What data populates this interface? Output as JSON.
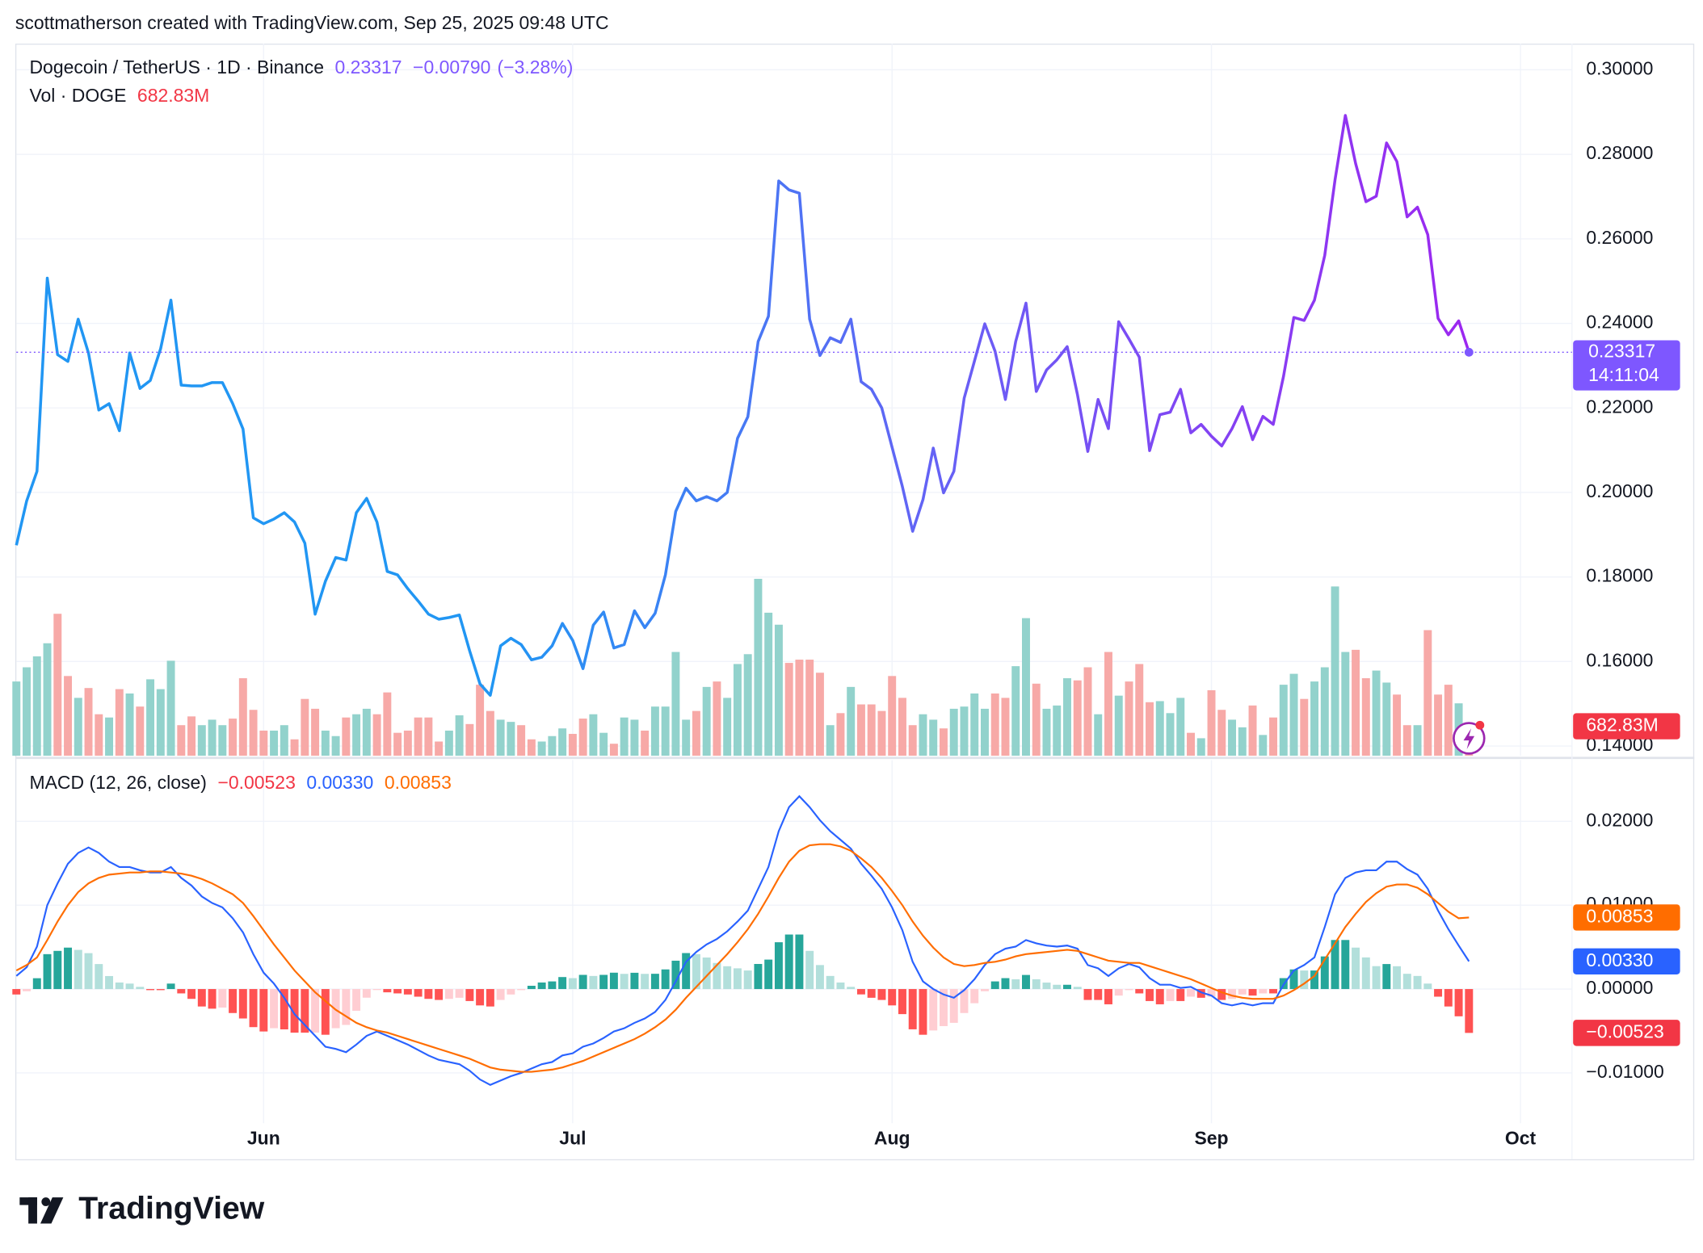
{
  "header": "scottmatherson created with TradingView.com, Sep 25, 2025 09:48 UTC",
  "brand": "TradingView",
  "chart_data": [
    {
      "type": "line",
      "title": "Dogecoin / TetherUS · 1D · Binance",
      "change": "−0.00790",
      "change_percent": "(−3.28%)",
      "countdown": "14:11:04",
      "color": "#7e57ff",
      "color_stops": [
        "#2196f3",
        "#2196f3",
        "#6c5cf5",
        "#9c27f0"
      ],
      "ylim": [
        0.1377,
        0.3062
      ],
      "yticks": [
        {
          "value": 0.14,
          "label": "0.14000"
        },
        {
          "value": 0.16,
          "label": "0.16000"
        },
        {
          "value": 0.18,
          "label": "0.18000"
        },
        {
          "value": 0.2,
          "label": "0.20000"
        },
        {
          "value": 0.22,
          "label": "0.22000"
        },
        {
          "value": 0.24,
          "label": "0.24000"
        },
        {
          "value": 0.26,
          "label": "0.26000"
        },
        {
          "value": 0.28,
          "label": "0.28000"
        },
        {
          "value": 0.3,
          "label": "0.30000"
        }
      ],
      "grid": true,
      "values": [
        0.1875,
        0.198,
        0.205,
        0.2507,
        0.2326,
        0.231,
        0.241,
        0.233,
        0.2195,
        0.221,
        0.2146,
        0.233,
        0.2246,
        0.2265,
        0.234,
        0.2455,
        0.2254,
        0.2252,
        0.2252,
        0.226,
        0.226,
        0.221,
        0.215,
        0.194,
        0.1926,
        0.1937,
        0.1952,
        0.193,
        0.188,
        0.1712,
        0.179,
        0.1846,
        0.184,
        0.1952,
        0.1986,
        0.193,
        0.1813,
        0.1805,
        0.1772,
        0.1743,
        0.1712,
        0.17,
        0.1704,
        0.171,
        0.1625,
        0.1547,
        0.152,
        0.1637,
        0.1655,
        0.164,
        0.1604,
        0.161,
        0.1637,
        0.169,
        0.165,
        0.1583,
        0.1686,
        0.1717,
        0.1632,
        0.164,
        0.172,
        0.168,
        0.1714,
        0.1805,
        0.1955,
        0.201,
        0.198,
        0.199,
        0.198,
        0.2,
        0.2128,
        0.2179,
        0.2357,
        0.2417,
        0.2737,
        0.2716,
        0.2708,
        0.241,
        0.2324,
        0.2366,
        0.2355,
        0.241,
        0.2262,
        0.2244,
        0.22,
        0.2107,
        0.2014,
        0.1908,
        0.1983,
        0.2105,
        0.1999,
        0.205,
        0.2223,
        0.2311,
        0.2399,
        0.2334,
        0.222,
        0.2357,
        0.2448,
        0.2239,
        0.229,
        0.2314,
        0.2345,
        0.2231,
        0.2097,
        0.222,
        0.2151,
        0.2404,
        0.2363,
        0.232,
        0.2099,
        0.2184,
        0.219,
        0.2244,
        0.2141,
        0.2161,
        0.2133,
        0.211,
        0.2151,
        0.2203,
        0.2125,
        0.218,
        0.2161,
        0.2275,
        0.2414,
        0.2407,
        0.2455,
        0.2561,
        0.274,
        0.2892,
        0.2778,
        0.2688,
        0.2701,
        0.2827,
        0.2783,
        0.2652,
        0.2675,
        0.261,
        0.2412,
        0.2373,
        0.2406,
        0.23317
      ]
    },
    {
      "type": "bar",
      "title": "Vol · DOGE",
      "last_label": "682.83M",
      "color": "#f23645",
      "up_color": "#92d2cc",
      "down_color": "#f7a9a7",
      "ylim": [
        0,
        16500
      ],
      "values": [
        1720,
        2049,
        2302,
        2606,
        3289,
        1847,
        1341,
        1569,
        961,
        886,
        1543,
        1442,
        1139,
        1771,
        1543,
        2201,
        708,
        911,
        708,
        835,
        708,
        860,
        1796,
        1063,
        582,
        582,
        708,
        380,
        1316,
        1088,
        582,
        455,
        886,
        961,
        1088,
        961,
        1467,
        531,
        582,
        886,
        886,
        329,
        582,
        936,
        734,
        1645,
        1037,
        835,
        784,
        708,
        380,
        329,
        455,
        633,
        506,
        860,
        961,
        531,
        278,
        886,
        835,
        582,
        1139,
        1139,
        2404,
        835,
        1037,
        1594,
        1720,
        1341,
        2125,
        2353,
        4099,
        3314,
        3036,
        2151,
        2226,
        2226,
        1923,
        708,
        987,
        1594,
        1189,
        1189,
        1037,
        1847,
        1341,
        708,
        961,
        835,
        633,
        1088,
        1139,
        1442,
        1088,
        1442,
        1341,
        2075,
        3188,
        1670,
        1088,
        1164,
        1796,
        1746,
        2049,
        961,
        2404,
        1392,
        1720,
        2125,
        1240,
        1265,
        987,
        1341,
        531,
        405,
        1518,
        1063,
        835,
        658,
        1164,
        481,
        886,
        1645,
        1898,
        1316,
        1720,
        2049,
        3922,
        2404,
        2454,
        1796,
        1973,
        1695,
        1417,
        708,
        708,
        2910,
        1417,
        1645,
        1214,
        682.83
      ]
    },
    {
      "type": "macd",
      "title": "MACD (12, 26, close)",
      "xlim": [
        0,
        151
      ],
      "xticks": [
        {
          "value": 24,
          "label": "Jun"
        },
        {
          "value": 54,
          "label": "Jul"
        },
        {
          "value": 85,
          "label": "Aug"
        },
        {
          "value": 116,
          "label": "Sep"
        },
        {
          "value": 146,
          "label": "Oct"
        }
      ],
      "ylim": [
        -0.016,
        0.0273
      ],
      "yticks": [
        {
          "value": 0.02,
          "label": "0.02000"
        },
        {
          "value": 0.01,
          "label": "0.01000"
        },
        {
          "value": 0,
          "label": "0.00000"
        },
        {
          "value": -0.01,
          "label": "−0.01000"
        }
      ],
      "grid": true,
      "series": [
        {
          "type": "histogram",
          "color": "#f23645",
          "shades": [
            "#26a69a",
            "#b2dfdb",
            "#ffcdd2",
            "#ff5252"
          ],
          "last_label": "−0.00523",
          "values": [
            -0.00065,
            -0.00026,
            0.00129,
            0.00416,
            0.00455,
            0.00494,
            0.00467,
            0.00428,
            0.00298,
            0.00155,
            0.00078,
            0.00065,
            0.00026,
            -0.00013,
            -0.00013,
            0.00065,
            -0.00052,
            -0.00117,
            -0.00208,
            -0.00234,
            -0.00221,
            -0.00286,
            -0.00351,
            -0.00454,
            -0.00506,
            -0.00467,
            -0.00481,
            -0.0052,
            -0.0052,
            -0.00519,
            -0.00545,
            -0.00467,
            -0.00428,
            -0.00259,
            -0.00103,
            -0.00012,
            -0.00039,
            -0.00052,
            -0.00065,
            -0.00091,
            -0.00117,
            -0.0013,
            -0.00117,
            -0.00104,
            -0.00143,
            -0.00195,
            -0.00208,
            -0.0013,
            -0.00065,
            -0.00013,
            0.00039,
            0.00078,
            0.00091,
            0.00143,
            0.0013,
            0.00169,
            0.00156,
            0.00169,
            0.00195,
            0.00181,
            0.00194,
            0.00181,
            0.00182,
            0.00234,
            0.00338,
            0.00429,
            0.00416,
            0.00376,
            0.00311,
            0.00272,
            0.00247,
            0.00221,
            0.00299,
            0.00351,
            0.00558,
            0.0065,
            0.0065,
            0.00455,
            0.00286,
            0.00156,
            0.00078,
            0.00026,
            -0.00064,
            -0.00104,
            -0.0013,
            -0.00195,
            -0.00299,
            -0.0048,
            -0.00545,
            -0.00494,
            -0.00442,
            -0.00403,
            -0.00286,
            -0.00169,
            -0.00026,
            0.00091,
            0.0013,
            0.00116,
            0.00168,
            0.00116,
            0.00077,
            0.00051,
            0.00051,
            0.00026,
            -0.0013,
            -0.0013,
            -0.00182,
            -0.00078,
            -0.00013,
            -0.00052,
            -0.00143,
            -0.00182,
            -0.00143,
            -0.00143,
            -0.00091,
            -0.00104,
            -0.00091,
            -0.0013,
            -0.00117,
            -0.00065,
            -0.00078,
            -0.00052,
            -0.00052,
            0.0013,
            0.00234,
            0.00221,
            0.00221,
            0.00389,
            0.00585,
            0.00585,
            0.00494,
            0.00377,
            0.00273,
            0.00298,
            0.00272,
            0.00182,
            0.00156,
            0.00065,
            -0.00091,
            -0.00208,
            -0.00325,
            -0.00523
          ]
        },
        {
          "type": "line",
          "color": "#2962ff",
          "last_label": "0.00330",
          "values": [
            0.00156,
            0.0026,
            0.00506,
            0.01,
            0.0126,
            0.01494,
            0.01623,
            0.01688,
            0.01623,
            0.01519,
            0.01455,
            0.01455,
            0.01416,
            0.0139,
            0.0139,
            0.01455,
            0.01325,
            0.01234,
            0.01104,
            0.01026,
            0.00974,
            0.00844,
            0.00675,
            0.00416,
            0.00195,
            0.00065,
            -0.00104,
            -0.00299,
            -0.00429,
            -0.00558,
            -0.00688,
            -0.00714,
            -0.00753,
            -0.00662,
            -0.00558,
            -0.00506,
            -0.00558,
            -0.0061,
            -0.00662,
            -0.00727,
            -0.00792,
            -0.00844,
            -0.0087,
            -0.00896,
            -0.00974,
            -0.01078,
            -0.01143,
            -0.01091,
            -0.01039,
            -0.01,
            -0.00948,
            -0.00896,
            -0.0087,
            -0.00792,
            -0.00766,
            -0.00688,
            -0.00649,
            -0.00584,
            -0.00506,
            -0.00468,
            -0.00403,
            -0.00351,
            -0.00273,
            -0.0013,
            0.00091,
            0.00325,
            0.00442,
            0.00532,
            0.00597,
            0.00688,
            0.00805,
            0.00935,
            0.01195,
            0.01455,
            0.01883,
            0.02169,
            0.02299,
            0.02169,
            0.02013,
            0.01883,
            0.01779,
            0.01675,
            0.01494,
            0.01351,
            0.01195,
            0.00974,
            0.00701,
            0.00325,
            0.00091,
            0,
            -0.00065,
            -0.00104,
            -0.00013,
            0.00117,
            0.00286,
            0.00416,
            0.00481,
            0.00506,
            0.00584,
            0.00545,
            0.00519,
            0.00506,
            0.00519,
            0.00481,
            0.00286,
            0.00247,
            0.00156,
            0.00247,
            0.00299,
            0.0026,
            0.0013,
            0.00052,
            0.00052,
            0.00013,
            0.00026,
            -0.00039,
            -0.00078,
            -0.00169,
            -0.00195,
            -0.00169,
            -0.00195,
            -0.00169,
            -0.00169,
            0.00052,
            0.00221,
            0.00286,
            0.00377,
            0.0074,
            0.0113,
            0.01325,
            0.0139,
            0.01416,
            0.01416,
            0.01519,
            0.01519,
            0.01429,
            0.01364,
            0.01195,
            0.00935,
            0.00714,
            0.00519,
            0.0033
          ]
        },
        {
          "type": "line",
          "color": "#ff6d00",
          "last_label": "0.00853",
          "values": [
            0.00221,
            0.00286,
            0.00377,
            0.00584,
            0.00805,
            0.01,
            0.01156,
            0.0126,
            0.01325,
            0.01364,
            0.01377,
            0.0139,
            0.0139,
            0.01403,
            0.01403,
            0.0139,
            0.01377,
            0.01351,
            0.01312,
            0.0126,
            0.01195,
            0.0113,
            0.01026,
            0.0087,
            0.00701,
            0.00532,
            0.00377,
            0.00221,
            0.00091,
            -0.00039,
            -0.00143,
            -0.00247,
            -0.00325,
            -0.00403,
            -0.00455,
            -0.00494,
            -0.00519,
            -0.00558,
            -0.00597,
            -0.00636,
            -0.00675,
            -0.00714,
            -0.00753,
            -0.00792,
            -0.00831,
            -0.00883,
            -0.00935,
            -0.00961,
            -0.00974,
            -0.00987,
            -0.00987,
            -0.00974,
            -0.00961,
            -0.00935,
            -0.00896,
            -0.00857,
            -0.00805,
            -0.00753,
            -0.00701,
            -0.00649,
            -0.00597,
            -0.00532,
            -0.00455,
            -0.00364,
            -0.00247,
            -0.00104,
            0.00026,
            0.00156,
            0.00286,
            0.00416,
            0.00558,
            0.00714,
            0.00896,
            0.01104,
            0.01325,
            0.01519,
            0.01649,
            0.01714,
            0.01727,
            0.01727,
            0.01701,
            0.01649,
            0.01558,
            0.01455,
            0.01325,
            0.01169,
            0.01,
            0.00805,
            0.00636,
            0.00494,
            0.00377,
            0.00299,
            0.00273,
            0.00286,
            0.00312,
            0.00325,
            0.00351,
            0.0039,
            0.00416,
            0.00429,
            0.00442,
            0.00455,
            0.00468,
            0.00455,
            0.00416,
            0.00377,
            0.00338,
            0.00325,
            0.00312,
            0.00312,
            0.00273,
            0.00234,
            0.00195,
            0.00156,
            0.00117,
            0.00065,
            0.00013,
            -0.00039,
            -0.00078,
            -0.00104,
            -0.00117,
            -0.00117,
            -0.00117,
            -0.00078,
            -0.00013,
            0.00065,
            0.00156,
            0.00351,
            0.00545,
            0.0074,
            0.00896,
            0.01039,
            0.01143,
            0.01221,
            0.01247,
            0.01247,
            0.01208,
            0.0113,
            0.01026,
            0.00922,
            0.00844,
            0.00853
          ]
        }
      ]
    }
  ]
}
